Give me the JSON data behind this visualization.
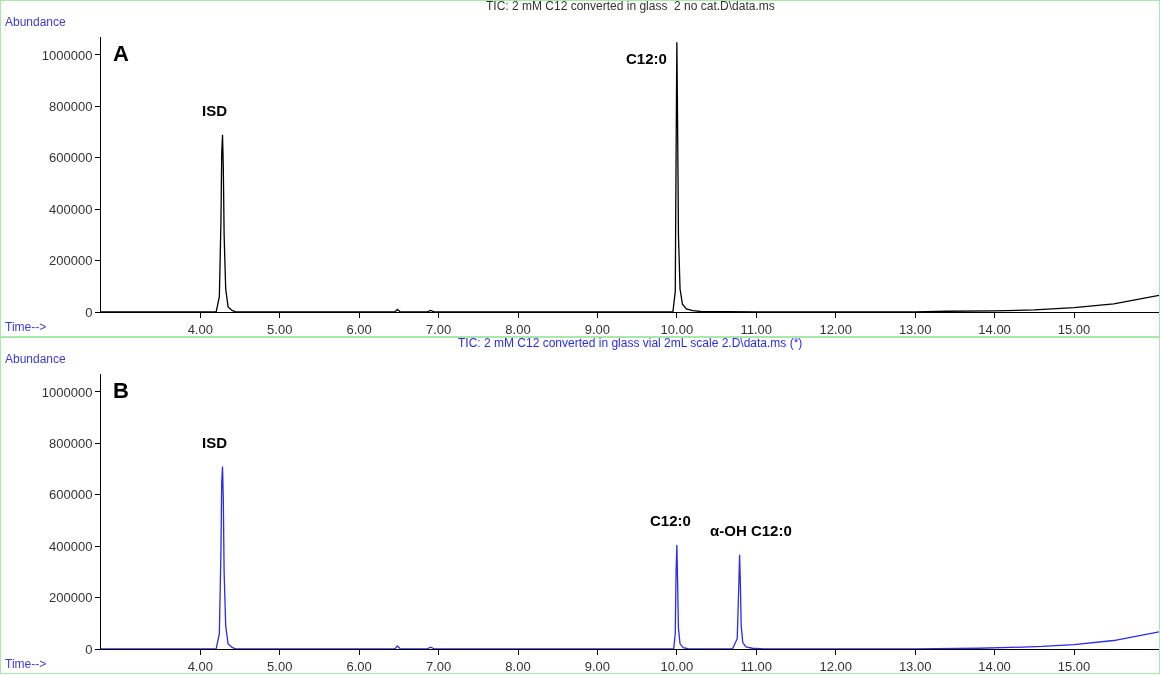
{
  "chart_data": [
    {
      "type": "line",
      "title": "TIC: 2 mM C12 converted in glass  2 no cat.D\\data.ms",
      "xlabel": "Time-->",
      "ylabel": "Abundance",
      "annotations": [
        "A",
        {
          "text": "ISD",
          "x": 4.28,
          "y": 690000
        },
        {
          "text": "C12:0",
          "x": 10.0,
          "y": 1050000
        }
      ],
      "series": [
        {
          "color": "#000000",
          "x": [
            2.75,
            3.5,
            4.0,
            4.2,
            4.24,
            4.26,
            4.27,
            4.28,
            4.29,
            4.3,
            4.32,
            4.35,
            4.4,
            4.45,
            5.0,
            6.0,
            6.45,
            6.48,
            6.52,
            6.85,
            6.9,
            6.95,
            7.6,
            8.5,
            9.5,
            9.95,
            9.98,
            9.99,
            10.0,
            10.01,
            10.02,
            10.04,
            10.07,
            10.12,
            10.2,
            10.3,
            11.0,
            12.0,
            13.0,
            13.4,
            14.0,
            14.5,
            15.0,
            15.5,
            16.07
          ],
          "values": [
            0,
            0,
            0,
            0,
            60000,
            350000,
            620000,
            690000,
            560000,
            300000,
            90000,
            20000,
            6000,
            0,
            0,
            0,
            0,
            10000,
            0,
            0,
            6000,
            0,
            0,
            0,
            0,
            0,
            80000,
            600000,
            1050000,
            700000,
            300000,
            90000,
            30000,
            12000,
            5000,
            2000,
            0,
            0,
            0,
            3000,
            4000,
            8000,
            17000,
            32000,
            65000
          ]
        }
      ],
      "xlim": [
        2.75,
        16.07
      ],
      "ylim": [
        0,
        1070000
      ],
      "xticks": [
        {
          "value": 4,
          "label": "4.00"
        },
        {
          "value": 5,
          "label": "5.00"
        },
        {
          "value": 6,
          "label": "6.00"
        },
        {
          "value": 7,
          "label": "7.00"
        },
        {
          "value": 8,
          "label": "8.00"
        },
        {
          "value": 9,
          "label": "9.00"
        },
        {
          "value": 10,
          "label": "10.00"
        },
        {
          "value": 11,
          "label": "11.00"
        },
        {
          "value": 12,
          "label": "12.00"
        },
        {
          "value": 13,
          "label": "13.00"
        },
        {
          "value": 14,
          "label": "14.00"
        },
        {
          "value": 15,
          "label": "15.00"
        }
      ],
      "yticks": [
        0,
        200000,
        400000,
        600000,
        800000,
        1000000
      ],
      "grid": false,
      "marker": "none",
      "line_style": "solid"
    },
    {
      "type": "line",
      "title": "TIC: 2 mM C12 converted in glass vial 2mL scale 2.D\\data.ms (*)",
      "xlabel": "Time-->",
      "ylabel": "Abundance",
      "annotations": [
        "B",
        {
          "text": "ISD",
          "x": 4.28,
          "y": 710000
        },
        {
          "text": "C12:0",
          "x": 10.0,
          "y": 405000
        },
        {
          "text": "α-OH C12:0",
          "x": 10.79,
          "y": 367000
        }
      ],
      "series": [
        {
          "color": "#2b2bf0",
          "x": [
            2.75,
            3.5,
            4.0,
            4.2,
            4.24,
            4.26,
            4.27,
            4.28,
            4.29,
            4.3,
            4.32,
            4.35,
            4.4,
            4.45,
            5.0,
            6.0,
            6.45,
            6.48,
            6.52,
            6.85,
            6.9,
            6.95,
            7.6,
            8.5,
            9.5,
            9.96,
            9.98,
            9.99,
            10.0,
            10.01,
            10.02,
            10.04,
            10.08,
            10.15,
            10.7,
            10.76,
            10.78,
            10.79,
            10.8,
            10.81,
            10.83,
            10.87,
            10.95,
            11.1,
            12.0,
            13.0,
            13.8,
            14.2,
            14.6,
            15.0,
            15.5,
            16.07
          ],
          "values": [
            0,
            0,
            0,
            0,
            60000,
            380000,
            650000,
            710000,
            580000,
            300000,
            90000,
            20000,
            6000,
            0,
            0,
            0,
            0,
            12000,
            0,
            0,
            7000,
            0,
            0,
            0,
            0,
            0,
            60000,
            300000,
            405000,
            250000,
            80000,
            20000,
            5000,
            0,
            0,
            40000,
            250000,
            367000,
            250000,
            90000,
            25000,
            8000,
            3000,
            0,
            0,
            0,
            3000,
            6000,
            10000,
            17000,
            33000,
            67000
          ]
        }
      ],
      "xlim": [
        2.75,
        16.07
      ],
      "ylim": [
        0,
        1070000
      ],
      "xticks": [
        {
          "value": 4,
          "label": "4.00"
        },
        {
          "value": 5,
          "label": "5.00"
        },
        {
          "value": 6,
          "label": "6.00"
        },
        {
          "value": 7,
          "label": "7.00"
        },
        {
          "value": 8,
          "label": "8.00"
        },
        {
          "value": 9,
          "label": "9.00"
        },
        {
          "value": 10,
          "label": "10.00"
        },
        {
          "value": 11,
          "label": "11.00"
        },
        {
          "value": 12,
          "label": "12.00"
        },
        {
          "value": 13,
          "label": "13.00"
        },
        {
          "value": 14,
          "label": "14.00"
        },
        {
          "value": 15,
          "label": "15.00"
        }
      ],
      "yticks": [
        0,
        200000,
        400000,
        600000,
        800000,
        1000000
      ],
      "grid": false,
      "marker": "none",
      "line_style": "solid"
    }
  ]
}
